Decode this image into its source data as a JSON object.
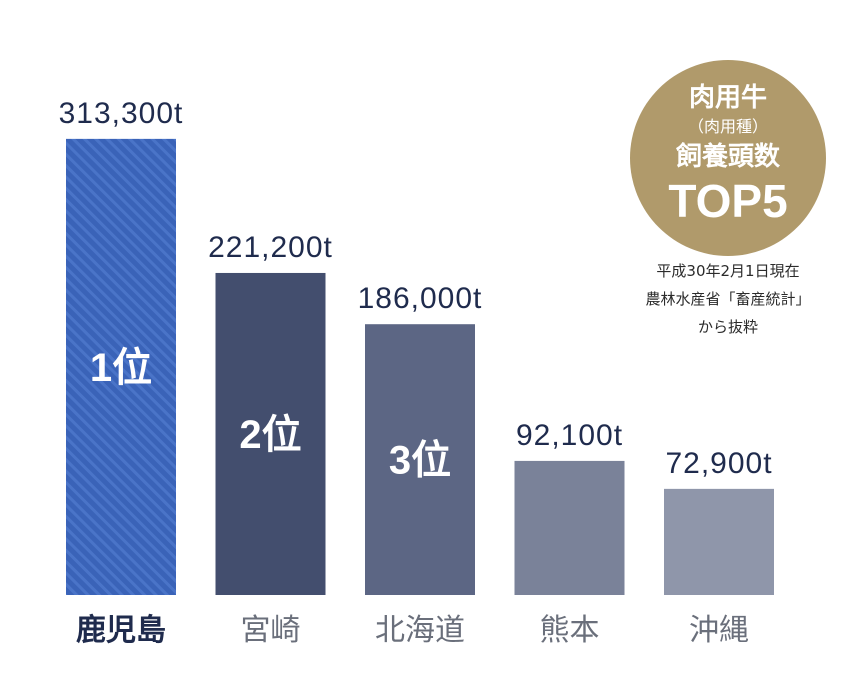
{
  "chart_data": {
    "type": "bar",
    "categories": [
      "鹿児島",
      "宮崎",
      "北海道",
      "熊本",
      "沖縄"
    ],
    "values": [
      313300,
      221200,
      186000,
      92100,
      72900
    ],
    "value_labels": [
      "313,300t",
      "221,200t",
      "186,000t",
      "92,100t",
      "72,900t"
    ],
    "rank_labels": [
      "1位",
      "2位",
      "3位",
      "",
      ""
    ],
    "highlight_index": 0,
    "ylim": [
      0,
      340000
    ],
    "grid": false,
    "bar_colors": [
      "#3a63b8",
      "#434e6e",
      "#5c6684",
      "#7a8299",
      "#8f96aa"
    ],
    "highlight_pattern": "diagonal-stripes"
  },
  "badge": {
    "line1": "肉用牛",
    "line2": "（肉用種）",
    "line3": "飼養頭数",
    "line4": "TOP5",
    "color": "#b09a6b"
  },
  "source": {
    "line1": "平成30年2月1日現在",
    "line2": "農林水産省「畜産統計」",
    "line3": "から抜粋"
  }
}
